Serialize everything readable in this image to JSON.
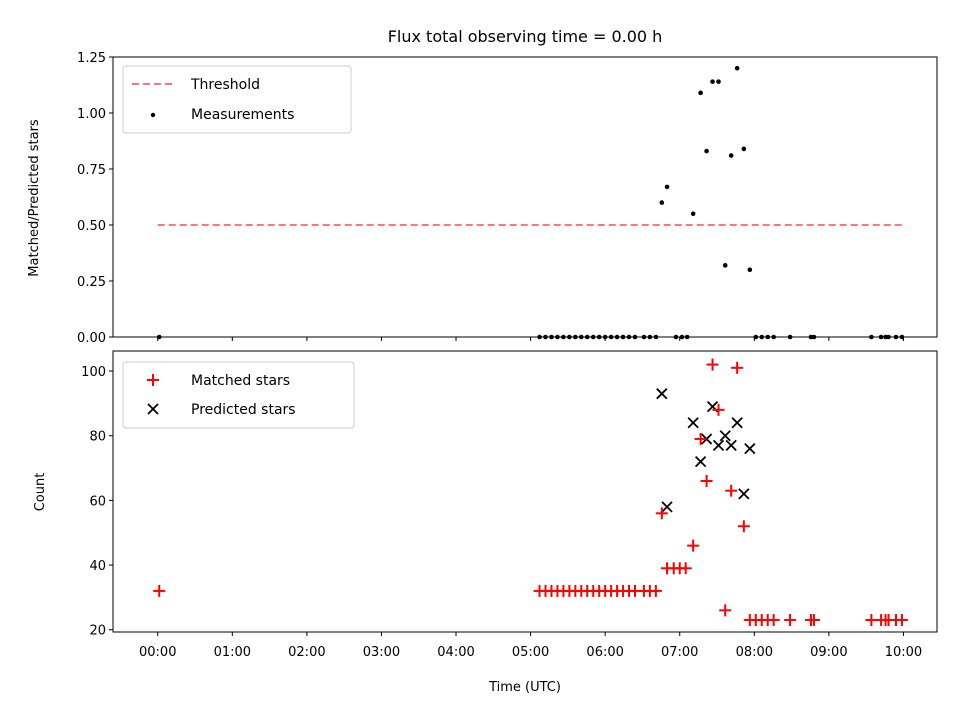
{
  "chart_data": [
    {
      "type": "scatter",
      "title": "Flux total observing time = 0.00 h",
      "xlabel": "",
      "ylabel": "Matched/Predicted stars",
      "xlim": [
        -0.6,
        10.45
      ],
      "ylim": [
        0,
        1.25
      ],
      "yticks": [
        0,
        0.25,
        0.5,
        0.75,
        1.0,
        1.25
      ],
      "ytick_labels": [
        "0.00",
        "0.25",
        "0.50",
        "0.75",
        "1.00",
        "1.25"
      ],
      "legend_position": "top-left",
      "threshold": {
        "name": "Threshold",
        "color": "#ff7777",
        "x": [
          0,
          10
        ],
        "y": [
          0.5,
          0.5
        ]
      },
      "series": [
        {
          "name": "Measurements",
          "marker": "dot",
          "color": "#000000",
          "x": [
            0.02,
            5.12,
            5.2,
            5.28,
            5.36,
            5.44,
            5.52,
            5.6,
            5.68,
            5.76,
            5.84,
            5.92,
            6.0,
            6.08,
            6.16,
            6.24,
            6.32,
            6.4,
            6.52,
            6.6,
            6.68,
            6.76,
            6.83,
            6.95,
            7.03,
            7.1,
            7.18,
            7.28,
            7.36,
            7.44,
            7.52,
            7.61,
            7.69,
            7.77,
            7.86,
            7.94,
            8.02,
            8.1,
            8.18,
            8.26,
            8.48,
            8.76,
            8.8,
            9.57,
            9.7,
            9.76,
            9.8,
            9.9,
            9.98
          ],
          "y": [
            0,
            0,
            0,
            0,
            0,
            0,
            0,
            0,
            0,
            0,
            0,
            0,
            0,
            0,
            0,
            0,
            0,
            0,
            0,
            0,
            0,
            0.6,
            0.67,
            0,
            0,
            0,
            0.55,
            1.09,
            0.83,
            1.14,
            1.14,
            0.32,
            0.81,
            1.2,
            0.84,
            0.3,
            0,
            0,
            0,
            0,
            0,
            0,
            0,
            0,
            0,
            0,
            0,
            0,
            0
          ]
        }
      ]
    },
    {
      "type": "scatter",
      "title": "",
      "xlabel": "Time (UTC)",
      "ylabel": "Count",
      "xlim": [
        -0.6,
        10.45
      ],
      "ylim": [
        19.3,
        106.2
      ],
      "xticks": [
        0,
        1,
        2,
        3,
        4,
        5,
        6,
        7,
        8,
        9,
        10
      ],
      "xtick_labels": [
        "00:00",
        "01:00",
        "02:00",
        "03:00",
        "04:00",
        "05:00",
        "06:00",
        "07:00",
        "08:00",
        "09:00",
        "10:00"
      ],
      "yticks": [
        20,
        40,
        60,
        80,
        100
      ],
      "ytick_labels": [
        "20",
        "40",
        "60",
        "80",
        "100"
      ],
      "legend_position": "top-left",
      "series": [
        {
          "name": "Matched stars",
          "marker": "plus",
          "color": "#ff0000",
          "x": [
            0.02,
            5.12,
            5.2,
            5.28,
            5.36,
            5.44,
            5.52,
            5.6,
            5.68,
            5.76,
            5.84,
            5.92,
            6.0,
            6.08,
            6.16,
            6.24,
            6.32,
            6.4,
            6.52,
            6.6,
            6.68,
            6.76,
            6.83,
            6.92,
            7.0,
            7.08,
            7.18,
            7.28,
            7.36,
            7.44,
            7.52,
            7.61,
            7.69,
            7.77,
            7.86,
            7.94,
            8.02,
            8.1,
            8.18,
            8.26,
            8.48,
            8.76,
            8.8,
            9.57,
            9.7,
            9.76,
            9.8,
            9.9,
            9.98
          ],
          "y": [
            32,
            32,
            32,
            32,
            32,
            32,
            32,
            32,
            32,
            32,
            32,
            32,
            32,
            32,
            32,
            32,
            32,
            32,
            32,
            32,
            32,
            56,
            39,
            39,
            39,
            39,
            46,
            79,
            66,
            102,
            88,
            26,
            63,
            101,
            52,
            23,
            23,
            23,
            23,
            23,
            23,
            23,
            23,
            23,
            23,
            23,
            23,
            23,
            23
          ]
        },
        {
          "name": "Predicted stars",
          "marker": "x",
          "color": "#000000",
          "x": [
            6.76,
            6.83,
            7.18,
            7.28,
            7.36,
            7.44,
            7.52,
            7.61,
            7.69,
            7.77,
            7.86,
            7.94
          ],
          "y": [
            93,
            58,
            84,
            72,
            79,
            89,
            77,
            80,
            77,
            84,
            62,
            76
          ]
        }
      ]
    }
  ]
}
